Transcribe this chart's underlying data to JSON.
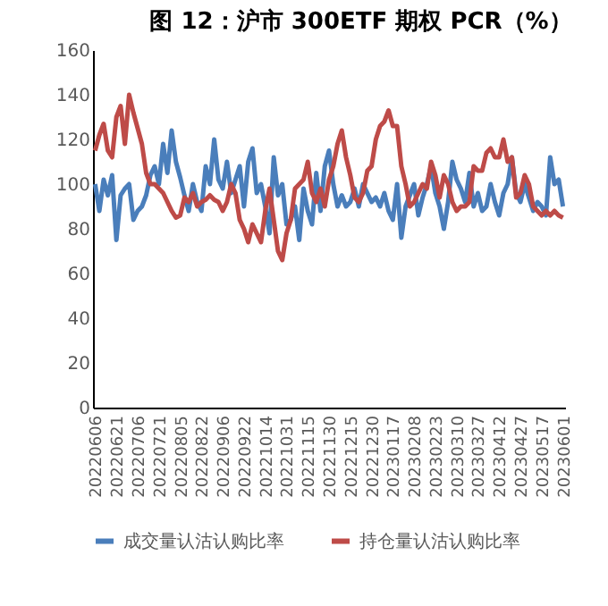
{
  "chart_data": {
    "type": "line",
    "title": "图 12：沪市 300ETF 期权 PCR（%）",
    "categories": [
      "20220606",
      null,
      null,
      null,
      null,
      "20220621",
      null,
      null,
      null,
      null,
      "20220706",
      null,
      null,
      null,
      null,
      "20220721",
      null,
      null,
      null,
      null,
      "20220805",
      null,
      null,
      null,
      null,
      "20220822",
      null,
      null,
      null,
      null,
      "20220906",
      null,
      null,
      null,
      null,
      "20220922",
      null,
      null,
      null,
      null,
      "20221014",
      null,
      null,
      null,
      null,
      "20221031",
      null,
      null,
      null,
      null,
      "20221115",
      null,
      null,
      null,
      null,
      "20221130",
      null,
      null,
      null,
      null,
      "20221215",
      null,
      null,
      null,
      null,
      "20221230",
      null,
      null,
      null,
      null,
      "20230117",
      null,
      null,
      null,
      null,
      "20230208",
      null,
      null,
      null,
      null,
      "20230223",
      null,
      null,
      null,
      null,
      "20230310",
      null,
      null,
      null,
      null,
      "20230327",
      null,
      null,
      null,
      null,
      "20230412",
      null,
      null,
      null,
      null,
      "20230427",
      null,
      null,
      null,
      null,
      "20230517",
      null,
      null,
      null,
      null,
      "20230601"
    ],
    "series": [
      {
        "name": "成交量认沽认购比率",
        "color": "#4a7ebb",
        "values": [
          100,
          88,
          102,
          95,
          104,
          75,
          95,
          98,
          100,
          84,
          88,
          90,
          95,
          104,
          108,
          100,
          118,
          105,
          124,
          110,
          103,
          95,
          88,
          100,
          92,
          88,
          108,
          100,
          120,
          102,
          98,
          110,
          96,
          102,
          108,
          90,
          110,
          116,
          96,
          100,
          90,
          78,
          112,
          95,
          100,
          82,
          84,
          90,
          75,
          98,
          88,
          82,
          105,
          88,
          108,
          115,
          100,
          90,
          95,
          90,
          92,
          98,
          90,
          100,
          96,
          92,
          94,
          90,
          96,
          88,
          84,
          100,
          76,
          90,
          95,
          100,
          86,
          94,
          100,
          108,
          96,
          90,
          80,
          92,
          110,
          102,
          98,
          92,
          105,
          90,
          96,
          88,
          90,
          100,
          92,
          86,
          96,
          100,
          112,
          96,
          92,
          100,
          94,
          88,
          92,
          90,
          86,
          112,
          100,
          102,
          90
        ]
      },
      {
        "name": "持仓量认沽认购比率",
        "color": "#be4b48",
        "values": [
          115,
          122,
          127,
          115,
          112,
          130,
          135,
          118,
          140,
          132,
          125,
          118,
          105,
          100,
          100,
          98,
          96,
          92,
          88,
          85,
          86,
          94,
          92,
          96,
          90,
          92,
          93,
          95,
          93,
          92,
          88,
          92,
          100,
          96,
          84,
          80,
          74,
          82,
          78,
          74,
          88,
          98,
          84,
          70,
          66,
          78,
          84,
          98,
          100,
          102,
          110,
          96,
          92,
          98,
          90,
          102,
          108,
          118,
          124,
          112,
          104,
          94,
          92,
          96,
          106,
          108,
          120,
          126,
          128,
          133,
          126,
          126,
          108,
          100,
          90,
          92,
          96,
          100,
          98,
          110,
          104,
          94,
          104,
          100,
          92,
          88,
          90,
          90,
          92,
          108,
          106,
          106,
          114,
          116,
          112,
          112,
          120,
          110,
          112,
          94,
          96,
          104,
          100,
          90,
          88,
          86,
          88,
          86,
          88,
          86,
          85
        ]
      }
    ],
    "ylim": [
      0,
      160
    ],
    "yticks": [
      0,
      20,
      40,
      60,
      80,
      100,
      120,
      140,
      160
    ],
    "grid": false,
    "legend": "bottom"
  }
}
